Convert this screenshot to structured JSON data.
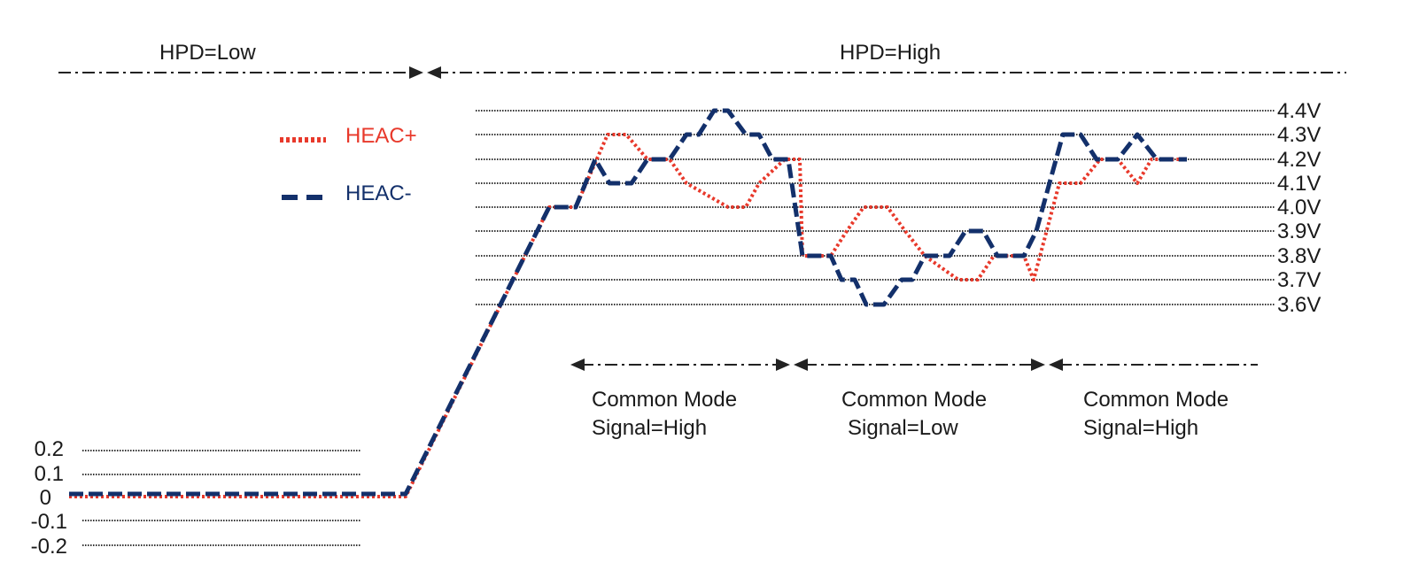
{
  "header": {
    "hpd_low": "HPD=Low",
    "hpd_high": "HPD=High"
  },
  "legend": [
    {
      "label": "HEAC+",
      "style": "dotted",
      "color": "#e8392b"
    },
    {
      "label": "HEAC-",
      "style": "dashed",
      "color": "#13306b"
    }
  ],
  "right_levels": [
    "4.4V",
    "4.3V",
    "4.2V",
    "4.1V",
    "4.0V",
    "3.9V",
    "3.8V",
    "3.7V",
    "3.6V"
  ],
  "left_levels": [
    "0.2",
    "0.1",
    "0",
    "-0.1",
    "-0.2"
  ],
  "regions": [
    {
      "line1": "Common Mode",
      "line2": "Signal=High"
    },
    {
      "line1": "Common Mode",
      "line2": "Signal=Low"
    },
    {
      "line1": "Common Mode",
      "line2": "Signal=High"
    }
  ],
  "colors": {
    "heac_plus": "#e8392b",
    "heac_minus": "#13306b",
    "guide": "#222222"
  }
}
